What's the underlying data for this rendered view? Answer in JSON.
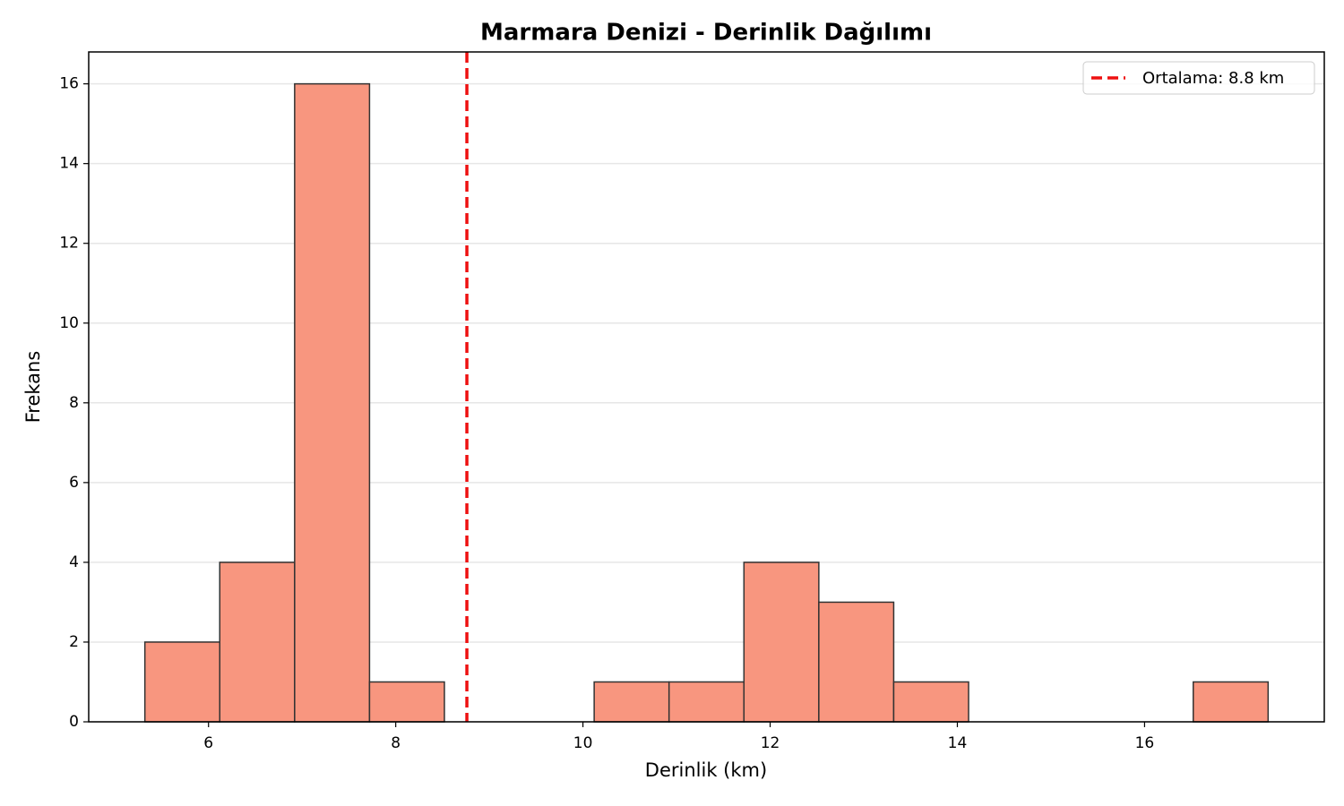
{
  "chart_data": {
    "type": "histogram",
    "title": "Marmara Denizi - Derinlik Dağılımı",
    "x_label": "Derinlik (km)",
    "y_label": "Frekans",
    "bins": [
      5.32,
      6.12,
      6.92,
      7.72,
      8.52,
      9.32,
      10.12,
      10.92,
      11.72,
      12.52,
      13.32,
      14.12,
      14.92,
      15.72,
      16.52,
      17.32
    ],
    "values": [
      2,
      4,
      16,
      1,
      0,
      0,
      1,
      1,
      4,
      3,
      1,
      0,
      0,
      0,
      1
    ],
    "color": "#f8967f",
    "edge_color": "#333333",
    "mean_line": {
      "value": 8.76,
      "label": "Ortalama: 8.8 km",
      "color": "#ee1111"
    },
    "xlim": [
      4.72,
      17.92
    ],
    "ylim": [
      0,
      16.8
    ],
    "xticks": [
      6,
      8,
      10,
      12,
      14,
      16
    ],
    "yticks": [
      0,
      2,
      4,
      6,
      8,
      10,
      12,
      14,
      16
    ],
    "grid": "y",
    "legend": "upper right"
  }
}
